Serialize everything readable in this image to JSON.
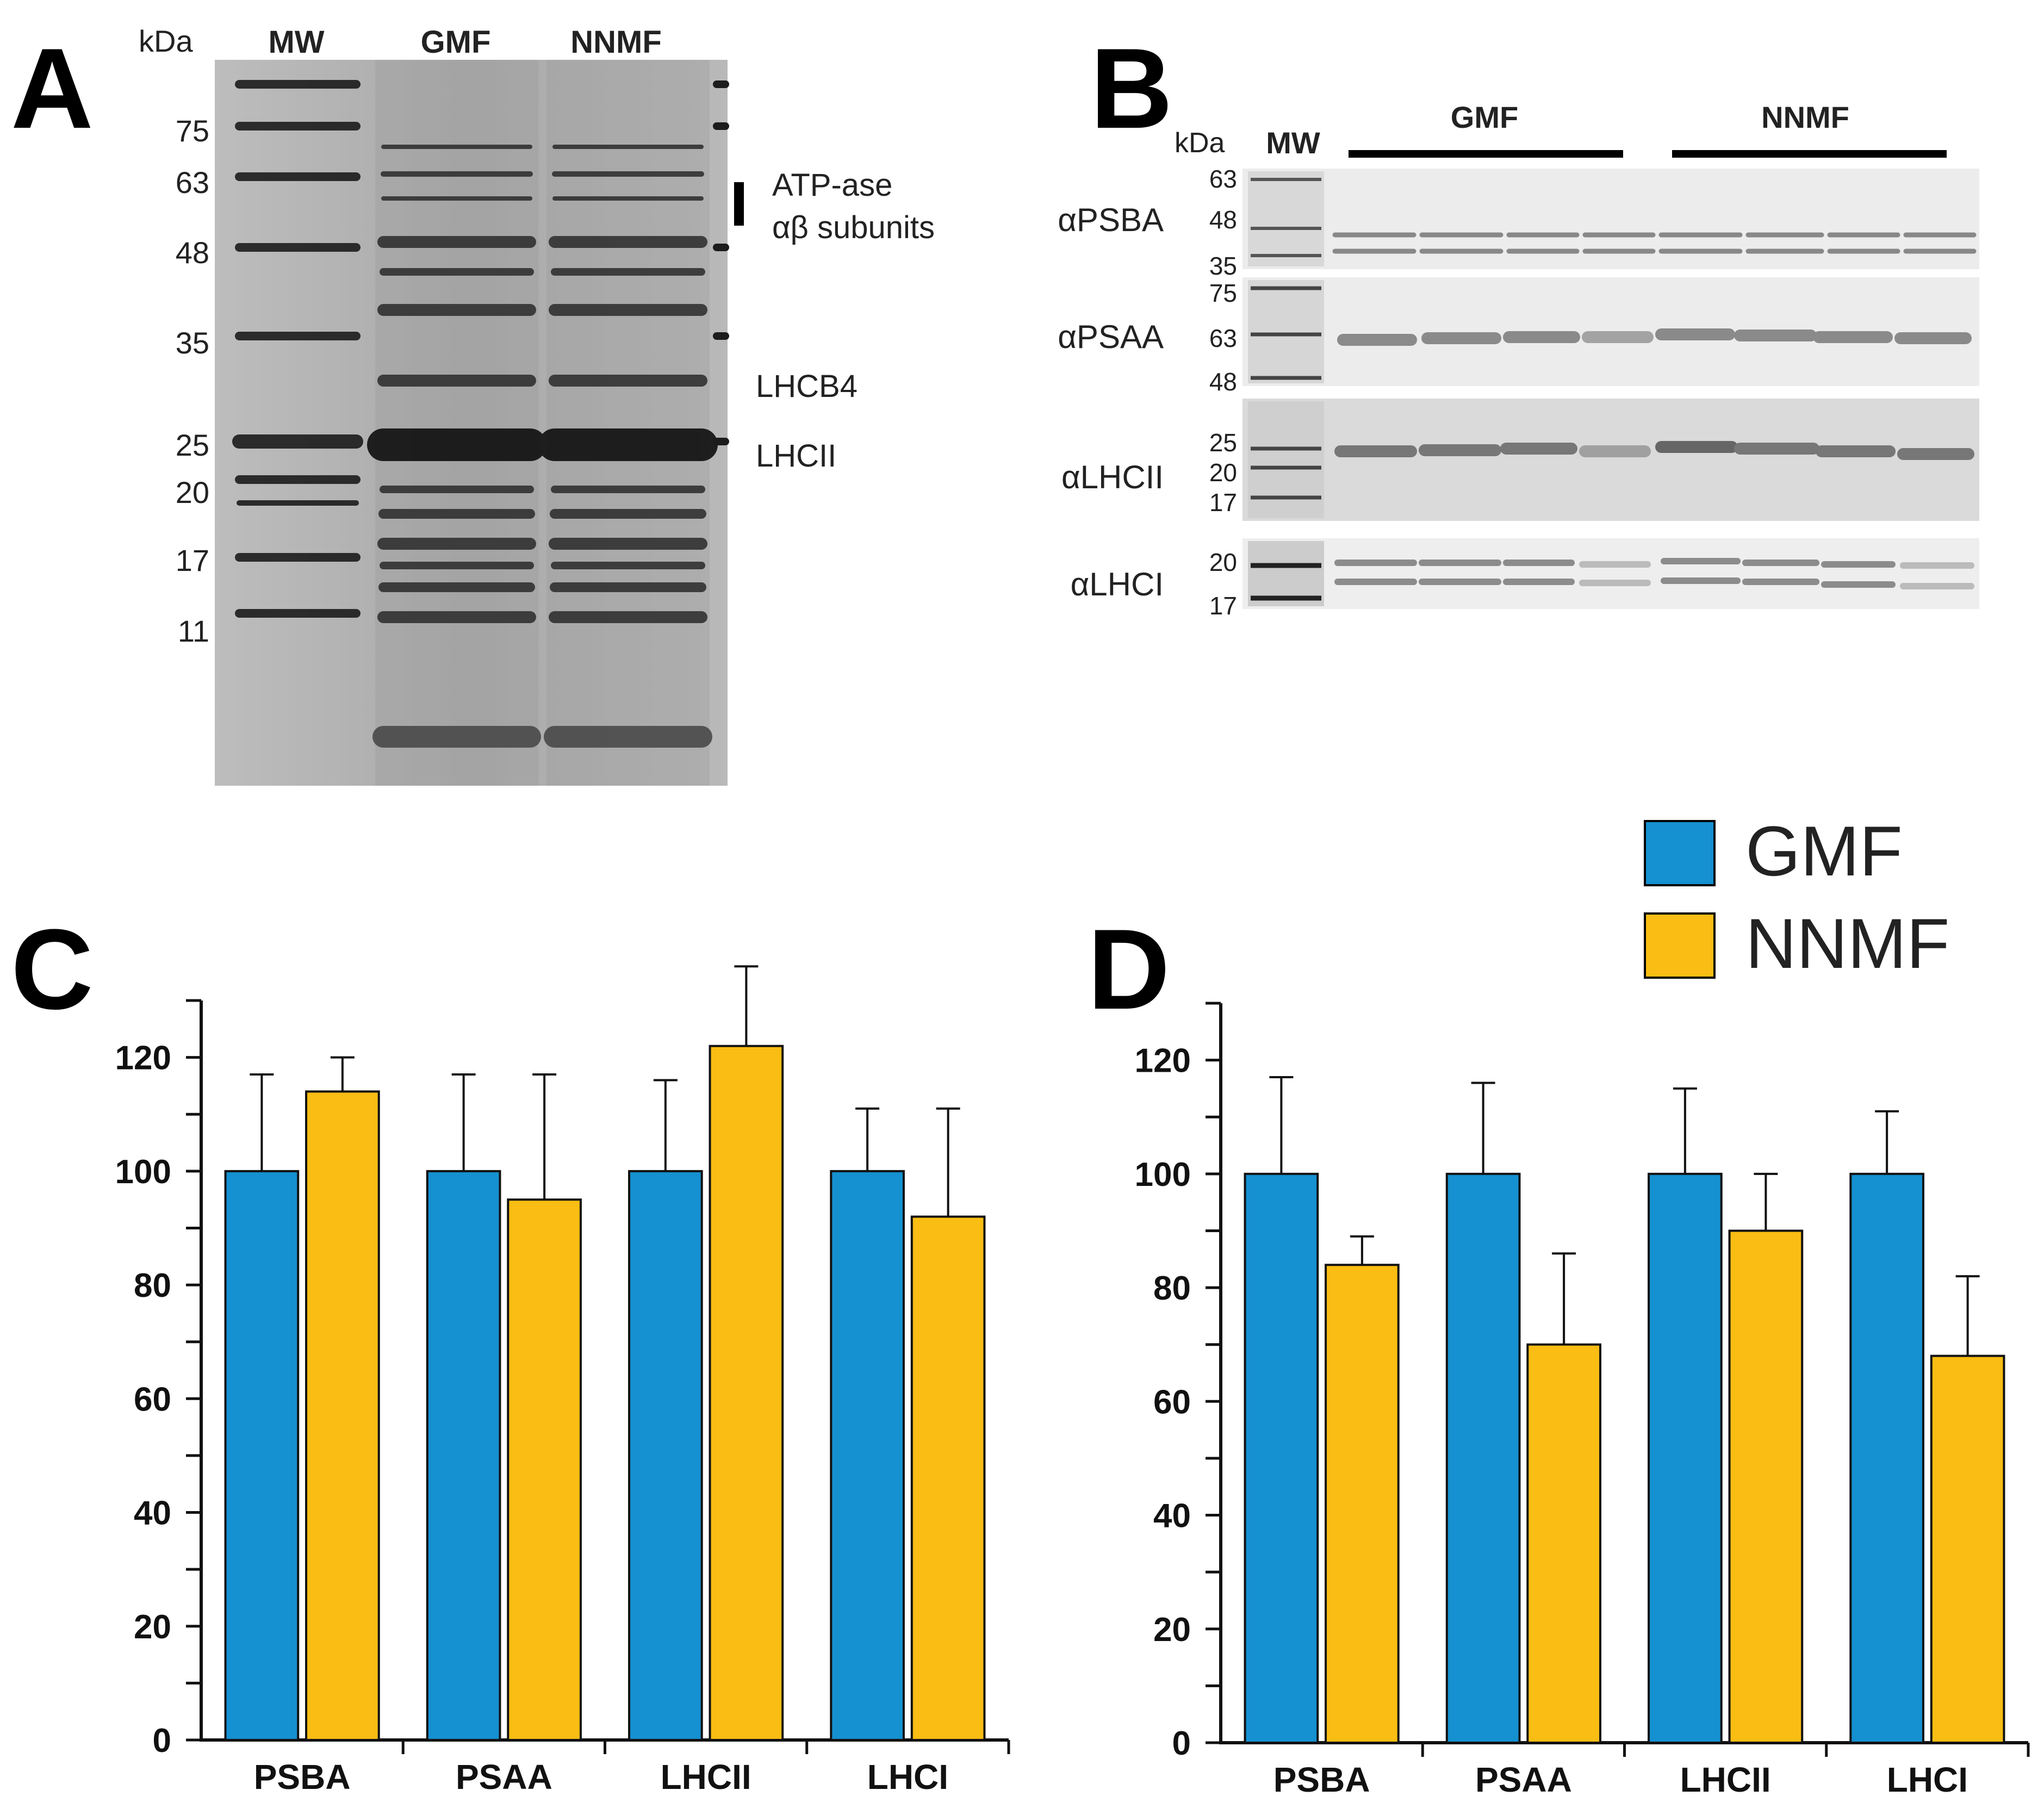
{
  "colors": {
    "gmf": "#1590d0",
    "nnmf": "#f9bd13",
    "axis": "#111111",
    "gel_bg": "#b3b3b3",
    "blot_bg": "#ececec"
  },
  "panel_a": {
    "letter": "A",
    "kda_label": "kDa",
    "lane_headers": [
      "MW",
      "GMF",
      "NNMF"
    ],
    "mw_markers": [
      "75",
      "63",
      "48",
      "35",
      "25",
      "20",
      "17",
      "11"
    ],
    "annotations": [
      "ATP-ase",
      "αβ subunits",
      "LHCB4",
      "LHCII"
    ]
  },
  "panel_b": {
    "letter": "B",
    "kda_label": "kDa",
    "mw_header": "MW",
    "group_headers": [
      "GMF",
      "NNMF"
    ],
    "blots": [
      {
        "antibody": "αPSBA",
        "markers": [
          "63",
          "48",
          "35"
        ]
      },
      {
        "antibody": "αPSAA",
        "markers": [
          "75",
          "63",
          "48"
        ]
      },
      {
        "antibody": "αLHCII",
        "markers": [
          "25",
          "20",
          "17"
        ]
      },
      {
        "antibody": "αLHCI",
        "markers": [
          "20",
          "17"
        ]
      }
    ]
  },
  "legend": {
    "items": [
      "GMF",
      "NNMF"
    ]
  },
  "chart_data": [
    {
      "panel": "C",
      "type": "bar",
      "categories": [
        "PSBA",
        "PSAA",
        "LHCII",
        "LHCI"
      ],
      "series": [
        {
          "name": "GMF",
          "values": [
            100,
            100,
            100,
            100
          ],
          "errors": [
            17,
            17,
            16,
            11
          ]
        },
        {
          "name": "NNMF",
          "values": [
            114,
            95,
            122,
            92
          ],
          "errors": [
            6,
            22,
            14,
            19
          ]
        }
      ],
      "ylim": [
        0,
        130
      ],
      "yticks": [
        "0",
        "20",
        "40",
        "60",
        "80",
        "100",
        "120"
      ],
      "title": "",
      "xlabel": "",
      "ylabel": ""
    },
    {
      "panel": "D",
      "type": "bar",
      "categories": [
        "PSBA",
        "PSAA",
        "LHCII",
        "LHCI"
      ],
      "series": [
        {
          "name": "GMF",
          "values": [
            100,
            100,
            100,
            100
          ],
          "errors": [
            17,
            16,
            15,
            11
          ]
        },
        {
          "name": "NNMF",
          "values": [
            84,
            70,
            90,
            68
          ],
          "errors": [
            5,
            16,
            10,
            14
          ]
        }
      ],
      "ylim": [
        0,
        130
      ],
      "yticks": [
        "0",
        "20",
        "40",
        "60",
        "80",
        "100",
        "120"
      ],
      "title": "",
      "xlabel": "",
      "ylabel": ""
    }
  ]
}
